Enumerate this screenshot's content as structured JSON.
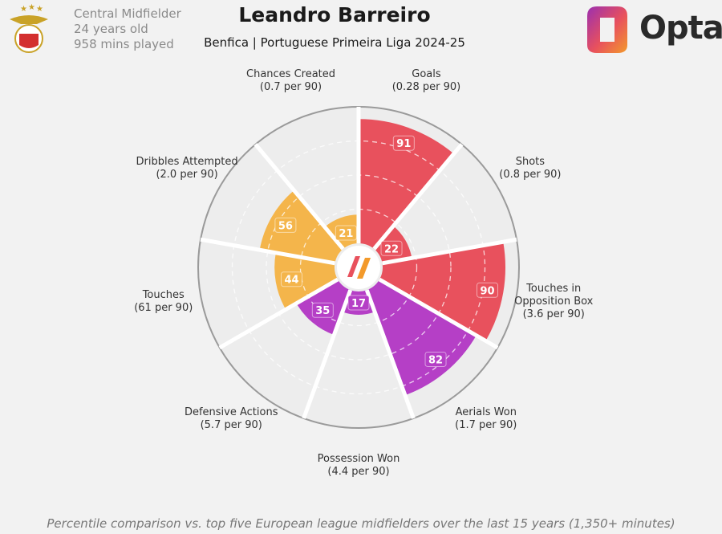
{
  "chart_data": {
    "type": "polar_bar",
    "title": "Leandro Barreiro",
    "subtitle": "Benfica | Portuguese Primeira Liga 2024-25",
    "player_info": [
      "Central Midfielder",
      "24 years old",
      "958 mins played"
    ],
    "brand": "Opta",
    "categories": [
      "Goals",
      "Shots",
      "Touches in Opposition Box",
      "Aerials Won",
      "Possession Won",
      "Defensive Actions",
      "Touches",
      "Dribbles Attempted",
      "Chances Created"
    ],
    "per90": [
      "(0.28 per 90)",
      "(0.8 per 90)",
      "(3.6 per 90)",
      "(1.7 per 90)",
      "(4.4 per 90)",
      "(5.7 per 90)",
      "(61 per 90)",
      "(2.0 per 90)",
      "(0.7 per 90)"
    ],
    "values": [
      91,
      22,
      90,
      82,
      17,
      35,
      44,
      56,
      21
    ],
    "colors": [
      "#e8515d",
      "#e8515d",
      "#e8515d",
      "#b53fc6",
      "#b53fc6",
      "#b53fc6",
      "#f4b54b",
      "#f4b54b",
      "#f4b54b"
    ],
    "rlim": [
      0,
      100
    ],
    "rticks": [
      25,
      50,
      75
    ],
    "grid": true,
    "note": "Percentile comparison vs. top five European league midfielders over the last 15 years (1,350+ minutes)"
  }
}
